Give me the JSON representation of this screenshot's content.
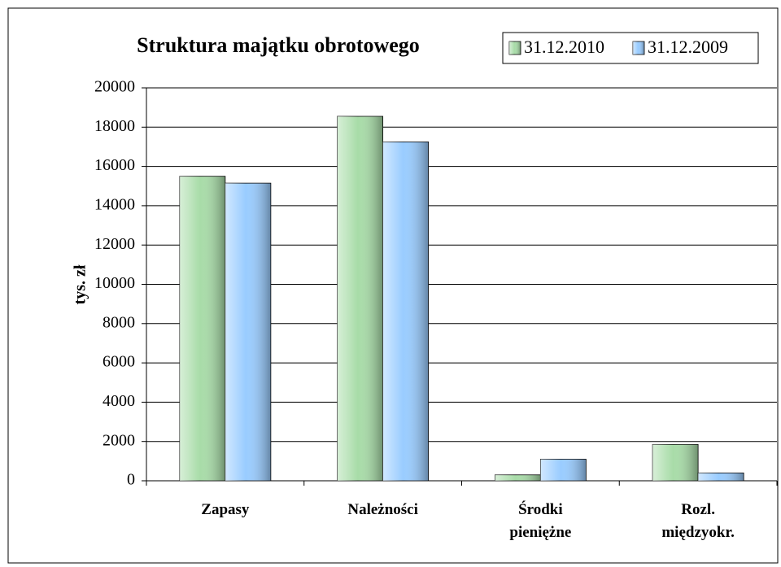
{
  "chart_data": {
    "type": "bar",
    "title": "Struktura majątku obrotowego",
    "y_label": "tys. zł",
    "categories": [
      "Zapasy",
      "Należności",
      "Środki pieniężne",
      "Rozl. międzyokr."
    ],
    "series": [
      {
        "name": "31.12.2010",
        "color": "#a8dca8",
        "values": [
          15500,
          18550,
          300,
          1850
        ]
      },
      {
        "name": "31.12.2009",
        "color": "#99ccff",
        "values": [
          15150,
          17250,
          1100,
          400
        ]
      }
    ],
    "ylim": [
      0,
      20000
    ],
    "yticks": [
      0,
      2000,
      4000,
      6000,
      8000,
      10000,
      12000,
      14000,
      16000,
      18000,
      20000
    ],
    "grid": true,
    "legend": "top-right"
  }
}
